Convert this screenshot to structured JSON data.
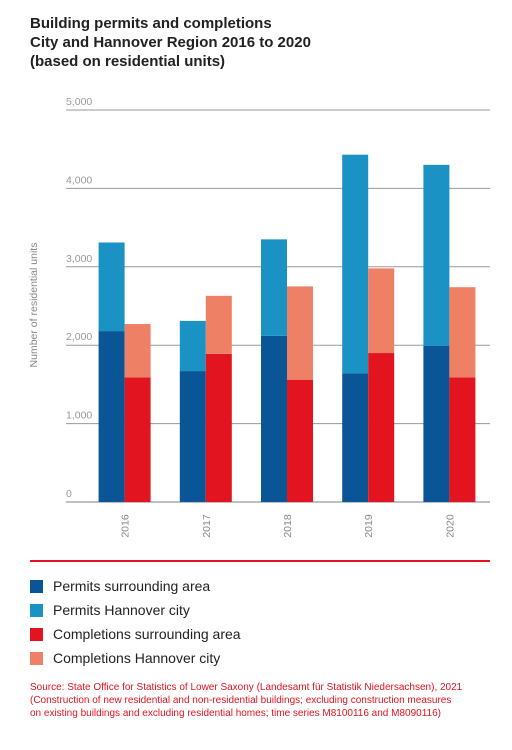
{
  "title_lines": [
    "Building permits and completions",
    "City and Hannover Region 2016 to 2020",
    "(based on residential units)"
  ],
  "colors": {
    "permits_surrounding": "#0a5596",
    "permits_city": "#1a93c4",
    "completions_surrounding": "#e2141f",
    "completions_city": "#ee8066",
    "grid": "#9a9a9a",
    "source_text": "#e2141f"
  },
  "chart_data": {
    "type": "bar",
    "stacked": true,
    "grouped": true,
    "categories": [
      "2016",
      "2017",
      "2018",
      "2019",
      "2020"
    ],
    "ylabel": "Number of residential units",
    "ylim": [
      0,
      5000
    ],
    "yticks": [
      "0",
      "1,000",
      "2,000",
      "3,000",
      "4,000",
      "5,000"
    ],
    "grid": true,
    "groups": [
      {
        "stack": "Permits",
        "series": [
          {
            "name": "Permits surrounding area",
            "color": "#0a5596",
            "values": [
              2180,
              1670,
              2120,
              1640,
              1990
            ]
          },
          {
            "name": "Permits Hannover city",
            "color": "#1a93c4",
            "values": [
              1130,
              640,
              1230,
              2790,
              2310
            ]
          }
        ]
      },
      {
        "stack": "Completions",
        "series": [
          {
            "name": "Completions surrounding area",
            "color": "#e2141f",
            "values": [
              1590,
              1890,
              1560,
              1900,
              1590
            ]
          },
          {
            "name": "Completions Hannover city",
            "color": "#ee8066",
            "values": [
              680,
              740,
              1190,
              1080,
              1150
            ]
          }
        ]
      }
    ]
  },
  "legend": [
    {
      "label": "Permits surrounding area",
      "color": "#0a5596"
    },
    {
      "label": "Permits Hannover city",
      "color": "#1a93c4"
    },
    {
      "label": "Completions surrounding area",
      "color": "#e2141f"
    },
    {
      "label": "Completions Hannover city",
      "color": "#ee8066"
    }
  ],
  "source_lines": [
    "Source: State Office for Statistics of Lower Saxony (Landesamt für Statistik Niedersachsen), 2021",
    "(Construction of new residential and non-residential buildings; excluding construction measures",
    "on existing buildings and excluding residential homes; time series M8100116 and M8090116)"
  ]
}
